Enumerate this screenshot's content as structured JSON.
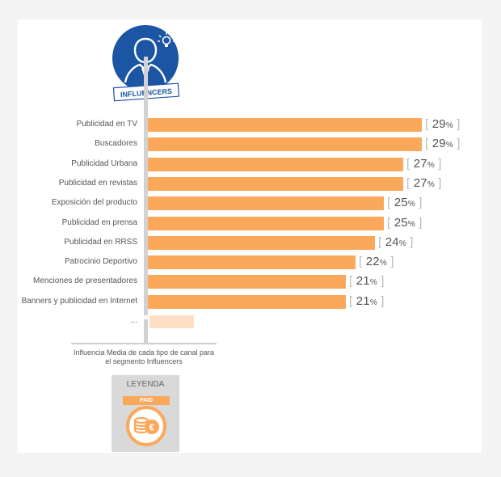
{
  "header": {
    "badge_label": "INFLUENCERS",
    "color": "#1b55a3"
  },
  "chart_data": {
    "type": "bar",
    "orientation": "horizontal",
    "categories": [
      "Publicidad en TV",
      "Buscadores",
      "Publicidad Urbana",
      "Publicidad en revistas",
      "Exposición del producto",
      "Publicidad en prensa",
      "Publicidad en RRSS",
      "Patrocinio Deportivo",
      "Menciones de presentadores",
      "Banners y publicidad en Internet",
      "..."
    ],
    "values": [
      29,
      29,
      27,
      27,
      25,
      25,
      24,
      22,
      21,
      21,
      null
    ],
    "value_suffix": "%",
    "bar_color": "#fba85a",
    "ellipsis_bar_color": "#fde0c4",
    "caption": "Influencia Media de cada tipo de canal para el segmento Influencers"
  },
  "legend": {
    "title": "LEYENDA",
    "tag": "PAID",
    "icon": "euro-coins-icon"
  }
}
